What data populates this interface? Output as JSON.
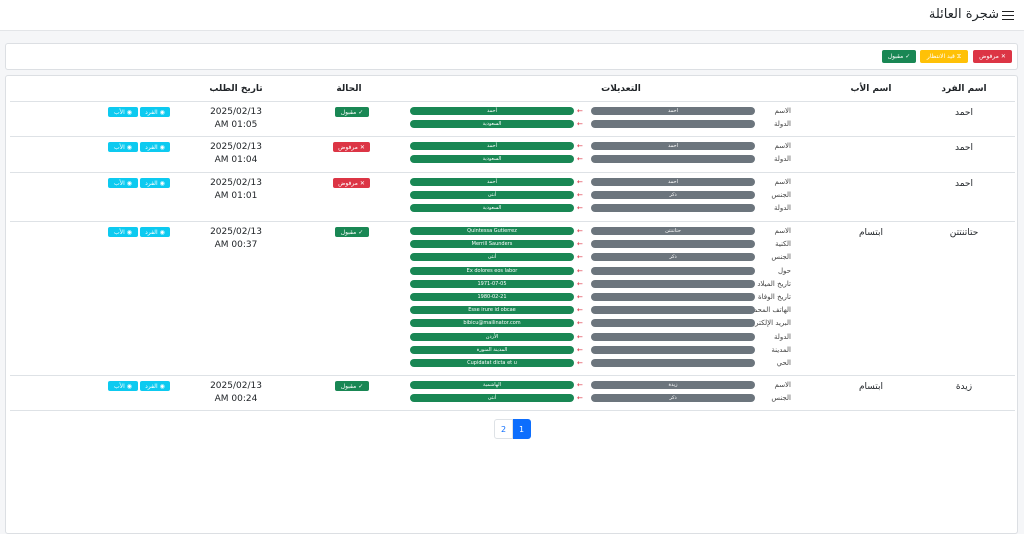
{
  "app": {
    "title": "شجرة العائلة"
  },
  "filters": {
    "rejected": "مرفوض",
    "pending": "قيد الانتظار",
    "accepted": "مقبول"
  },
  "table": {
    "headers": {
      "member_name": "اسم الفرد",
      "father_name": "اسم الأب",
      "modifications": "التعديلات",
      "status": "الحالة",
      "request_date": "تاريخ الطلب"
    },
    "rows": [
      {
        "member": "احمد",
        "father": "",
        "changes": [
          {
            "field": "الاسم",
            "old": "احمد",
            "new": "أحمد"
          },
          {
            "field": "الدولة",
            "old": "",
            "new": "السعودية"
          }
        ],
        "status": "مقبول",
        "status_type": "ok",
        "date": "2025/02/13",
        "time": "AM 01:05",
        "btn_member": "الفرد",
        "btn_father": "الأب"
      },
      {
        "member": "احمد",
        "father": "",
        "changes": [
          {
            "field": "الاسم",
            "old": "احمد",
            "new": "أحمد"
          },
          {
            "field": "الدولة",
            "old": "",
            "new": "السعودية"
          }
        ],
        "status": "مرفوض",
        "status_type": "no",
        "date": "2025/02/13",
        "time": "AM 01:04",
        "btn_member": "الفرد",
        "btn_father": "الأب"
      },
      {
        "member": "احمد",
        "father": "",
        "changes": [
          {
            "field": "الاسم",
            "old": "احمد",
            "new": "أحمد"
          },
          {
            "field": "الجنس",
            "old": "ذكر",
            "new": "أنثى"
          },
          {
            "field": "الدولة",
            "old": "",
            "new": "السعودية"
          }
        ],
        "status": "مرفوض",
        "status_type": "no",
        "date": "2025/02/13",
        "time": "AM 01:01",
        "btn_member": "الفرد",
        "btn_father": "الأب"
      },
      {
        "member": "حتاتنتتن",
        "father": "ابتسام",
        "changes": [
          {
            "field": "الاسم",
            "old": "حتاتنتتن",
            "new": "Quintessa Gutierrez"
          },
          {
            "field": "الكنية",
            "old": "",
            "new": "Merrill Saunders"
          },
          {
            "field": "الجنس",
            "old": "ذكر",
            "new": "أنثى"
          },
          {
            "field": "حول",
            "old": "",
            "new": "Ex dolores eos labor"
          },
          {
            "field": "تاريخ الميلاد",
            "old": "",
            "new": "1971-07-05"
          },
          {
            "field": "تاريخ الوفاة",
            "old": "",
            "new": "1980-02-21"
          },
          {
            "field": "الهاتف المحمول",
            "old": "",
            "new": "Esse irure id obcae"
          },
          {
            "field": "البريد الإلكتروني",
            "old": "",
            "new": "bibicu@mailinator.com"
          },
          {
            "field": "الدولة",
            "old": "",
            "new": "الأردن"
          },
          {
            "field": "المدينة",
            "old": "",
            "new": "المدينة المنورة"
          },
          {
            "field": "الحي",
            "old": "",
            "new": "Cupidatat dicta et u"
          }
        ],
        "status": "مقبول",
        "status_type": "ok",
        "date": "2025/02/13",
        "time": "AM 00:37",
        "btn_member": "الفرد",
        "btn_father": "الأب"
      },
      {
        "member": "زيدة",
        "father": "ابتسام",
        "changes": [
          {
            "field": "الاسم",
            "old": "زيدة",
            "new": "الهاشمية"
          },
          {
            "field": "الجنس",
            "old": "ذكر",
            "new": "أنثى"
          }
        ],
        "status": "مقبول",
        "status_type": "ok",
        "date": "2025/02/13",
        "time": "AM 00:24",
        "btn_member": "الفرد",
        "btn_father": "الأب"
      }
    ]
  },
  "pagination": {
    "pages": [
      "2",
      "1"
    ],
    "active": "1"
  },
  "colors": {
    "accepted": "#198754",
    "rejected": "#dc3545",
    "pending": "#ffc107",
    "info": "#0dcaf0",
    "primary": "#0d6efd",
    "old_value": "#6c757d"
  }
}
